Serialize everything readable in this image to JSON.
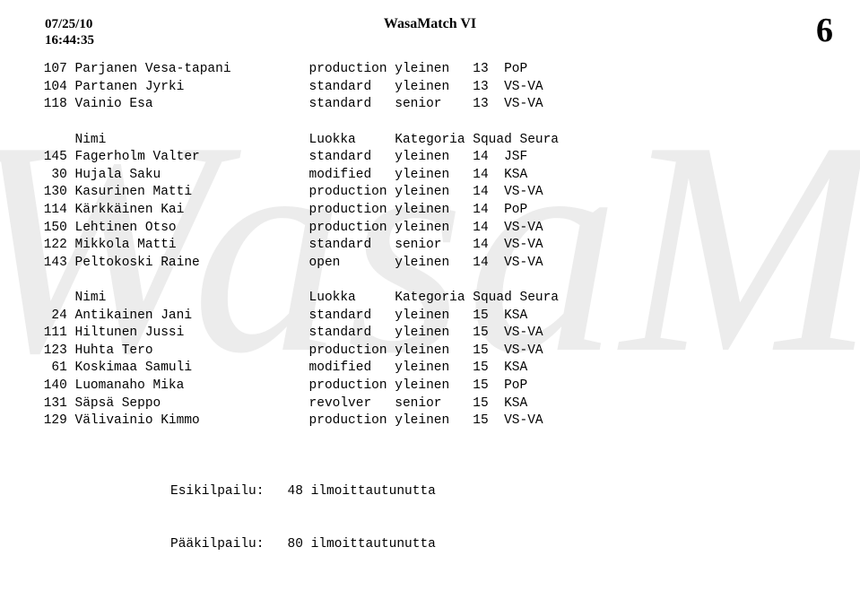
{
  "header": {
    "dateline1": "07/25/10",
    "dateline2": "16:44:35",
    "title": "WasaMatch VI",
    "page": "6"
  },
  "watermark": "WasaMatch V",
  "columns": {
    "c1": "Nimi",
    "c2": "Luokka",
    "c3": "Kategoria",
    "c4": "Squad",
    "c5": "Seura"
  },
  "block1": [
    {
      "num": "107",
      "name": "Parjanen Vesa-tapani",
      "luokka": "production",
      "kat": "yleinen",
      "squad": "13",
      "seura": "PoP"
    },
    {
      "num": "104",
      "name": "Partanen Jyrki",
      "luokka": "standard",
      "kat": "yleinen",
      "squad": "13",
      "seura": "VS-VA"
    },
    {
      "num": "118",
      "name": "Vainio Esa",
      "luokka": "standard",
      "kat": "senior",
      "squad": "13",
      "seura": "VS-VA"
    }
  ],
  "block2": [
    {
      "num": "145",
      "name": "Fagerholm Valter",
      "luokka": "standard",
      "kat": "yleinen",
      "squad": "14",
      "seura": "JSF"
    },
    {
      "num": "30",
      "name": "Hujala Saku",
      "luokka": "modified",
      "kat": "yleinen",
      "squad": "14",
      "seura": "KSA"
    },
    {
      "num": "130",
      "name": "Kasurinen Matti",
      "luokka": "production",
      "kat": "yleinen",
      "squad": "14",
      "seura": "VS-VA"
    },
    {
      "num": "114",
      "name": "Kärkkäinen Kai",
      "luokka": "production",
      "kat": "yleinen",
      "squad": "14",
      "seura": "PoP"
    },
    {
      "num": "150",
      "name": "Lehtinen Otso",
      "luokka": "production",
      "kat": "yleinen",
      "squad": "14",
      "seura": "VS-VA"
    },
    {
      "num": "122",
      "name": "Mikkola Matti",
      "luokka": "standard",
      "kat": "senior",
      "squad": "14",
      "seura": "VS-VA"
    },
    {
      "num": "143",
      "name": "Peltokoski Raine",
      "luokka": "open",
      "kat": "yleinen",
      "squad": "14",
      "seura": "VS-VA"
    }
  ],
  "block3": [
    {
      "num": "24",
      "name": "Antikainen Jani",
      "luokka": "standard",
      "kat": "yleinen",
      "squad": "15",
      "seura": "KSA"
    },
    {
      "num": "111",
      "name": "Hiltunen Jussi",
      "luokka": "standard",
      "kat": "yleinen",
      "squad": "15",
      "seura": "VS-VA"
    },
    {
      "num": "123",
      "name": "Huhta Tero",
      "luokka": "production",
      "kat": "yleinen",
      "squad": "15",
      "seura": "VS-VA"
    },
    {
      "num": "61",
      "name": "Koskimaa Samuli",
      "luokka": "modified",
      "kat": "yleinen",
      "squad": "15",
      "seura": "KSA"
    },
    {
      "num": "140",
      "name": "Luomanaho Mika",
      "luokka": "production",
      "kat": "yleinen",
      "squad": "15",
      "seura": "PoP"
    },
    {
      "num": "131",
      "name": "Säpsä Seppo",
      "luokka": "revolver",
      "kat": "senior",
      "squad": "15",
      "seura": "KSA"
    },
    {
      "num": "129",
      "name": "Välivainio Kimmo",
      "luokka": "production",
      "kat": "yleinen",
      "squad": "15",
      "seura": "VS-VA"
    }
  ],
  "footer": {
    "line1_label": "Esikilpailu:",
    "line1_val": "48 ilmoittautunutta",
    "line2_label": "Pääkilpailu:",
    "line2_val": "80 ilmoittautunutta"
  },
  "style": {
    "font_mono": "Courier New",
    "font_serif": "Times New Roman",
    "text_color": "#000000",
    "watermark_color": "#ececec",
    "background": "#ffffff",
    "body_fontsize": 14.5,
    "header_date_fontsize": 15,
    "header_title_fontsize": 16,
    "page_num_fontsize": 38,
    "watermark_fontsize": 340,
    "col_widths": {
      "num": 4,
      "name": 30,
      "luokka": 11,
      "kat": 10,
      "squad": 5
    }
  }
}
